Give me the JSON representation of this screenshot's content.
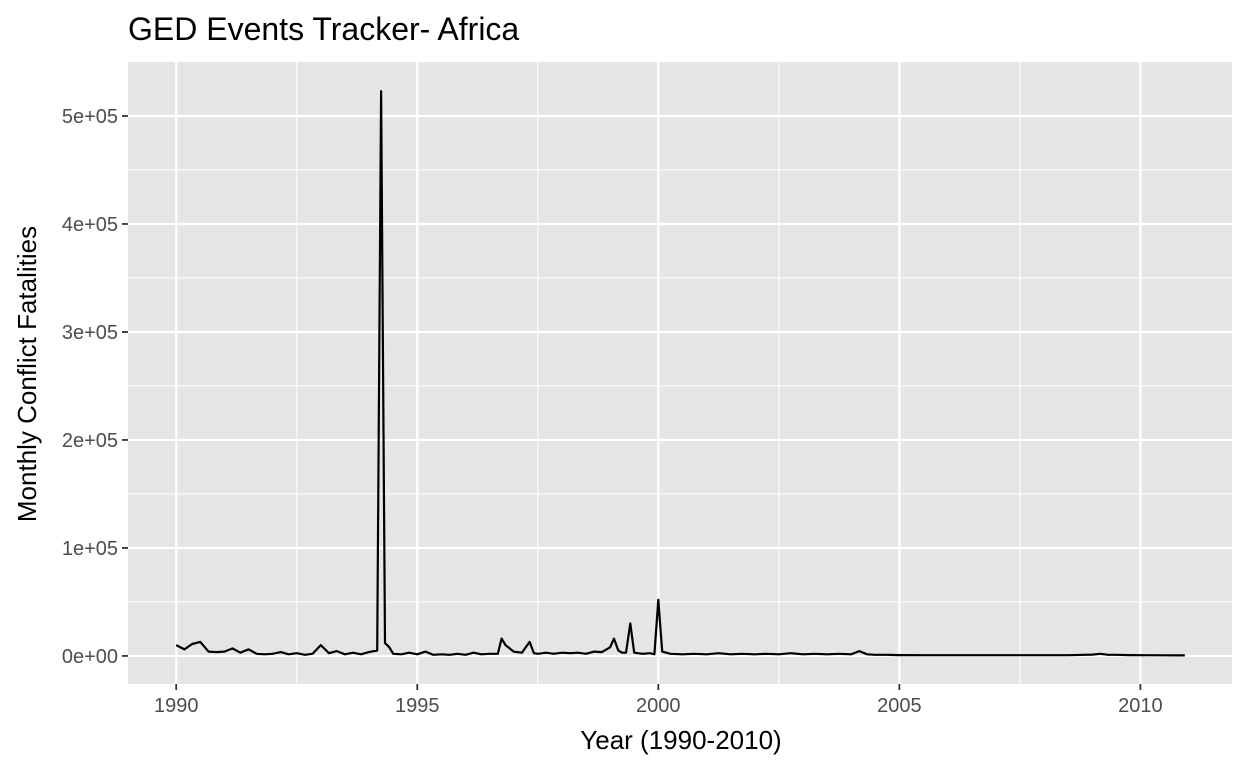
{
  "chart_data": {
    "type": "line",
    "title": "GED Events Tracker- Africa",
    "xlabel": "Year (1990-2010)",
    "ylabel": "Monthly Conflict Fatalities",
    "xlim": [
      1989.0,
      2011.9
    ],
    "ylim": [
      -26000,
      550000
    ],
    "x_ticks": [
      1990,
      1995,
      2000,
      2005,
      2010
    ],
    "x_tick_labels": [
      "1990",
      "1995",
      "2000",
      "2005",
      "2010"
    ],
    "y_ticks": [
      0,
      100000,
      200000,
      300000,
      400000,
      500000
    ],
    "y_tick_labels": [
      "0e+00",
      "1e+05",
      "2e+05",
      "3e+05",
      "4e+05",
      "5e+05"
    ],
    "grid": true,
    "background_color": "#e5e5e5",
    "line_color": "#000000",
    "series": [
      {
        "x": [
          1990.0,
          1990.17,
          1990.33,
          1990.5,
          1990.67,
          1990.83,
          1991.0,
          1991.17,
          1991.33,
          1991.5,
          1991.67,
          1991.83,
          1992.0,
          1992.17,
          1992.33,
          1992.5,
          1992.67,
          1992.83,
          1993.0,
          1993.17,
          1993.33,
          1993.5,
          1993.67,
          1993.83,
          1994.0,
          1994.17,
          1994.25,
          1994.33,
          1994.42,
          1994.5,
          1994.67,
          1994.83,
          1995.0,
          1995.17,
          1995.33,
          1995.5,
          1995.67,
          1995.83,
          1996.0,
          1996.17,
          1996.33,
          1996.5,
          1996.67,
          1996.75,
          1996.83,
          1997.0,
          1997.17,
          1997.33,
          1997.42,
          1997.5,
          1997.67,
          1997.83,
          1998.0,
          1998.17,
          1998.33,
          1998.5,
          1998.67,
          1998.83,
          1999.0,
          1999.08,
          1999.17,
          1999.25,
          1999.33,
          1999.42,
          1999.5,
          1999.67,
          1999.83,
          1999.92,
          2000.0,
          2000.08,
          2000.25,
          2000.5,
          2000.75,
          2001.0,
          2001.25,
          2001.5,
          2001.75,
          2002.0,
          2002.25,
          2002.5,
          2002.75,
          2003.0,
          2003.25,
          2003.5,
          2003.75,
          2004.0,
          2004.17,
          2004.33,
          2004.5,
          2004.75,
          2005.0,
          2005.5,
          2006.0,
          2006.5,
          2007.0,
          2007.5,
          2008.0,
          2008.5,
          2009.0,
          2009.17,
          2009.33,
          2009.5,
          2009.75,
          2010.0,
          2010.5,
          2010.92
        ],
        "values": [
          10000,
          6000,
          11000,
          13000,
          4000,
          3500,
          4000,
          7000,
          3000,
          6000,
          2000,
          1500,
          2000,
          3500,
          1500,
          2500,
          1000,
          2000,
          10000,
          2500,
          4500,
          1500,
          3000,
          1500,
          3500,
          5000,
          523000,
          12000,
          8000,
          2000,
          1500,
          3000,
          1500,
          4000,
          1000,
          1500,
          1000,
          2000,
          1000,
          3000,
          1500,
          2000,
          2000,
          16000,
          10000,
          4000,
          3000,
          13000,
          2500,
          2000,
          3000,
          2000,
          3000,
          2500,
          3000,
          2000,
          4000,
          3500,
          8000,
          16000,
          5000,
          3000,
          3000,
          30000,
          3000,
          2000,
          2500,
          1500,
          52000,
          4000,
          2000,
          1500,
          2000,
          1500,
          2500,
          1500,
          2000,
          1500,
          2000,
          1500,
          2500,
          1500,
          2000,
          1500,
          2000,
          1500,
          4500,
          1500,
          1000,
          1000,
          800,
          700,
          700,
          700,
          700,
          700,
          700,
          700,
          1200,
          2000,
          1000,
          1000,
          800,
          700,
          600,
          500
        ]
      }
    ]
  }
}
